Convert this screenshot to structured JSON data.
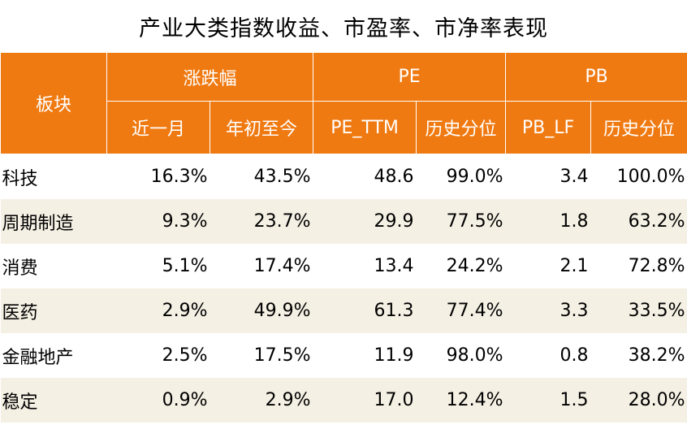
{
  "title": "产业大类指数收益、市盈率、市净率表现",
  "header": {
    "block": "板块",
    "groups": [
      "涨跌幅",
      "PE",
      "PB"
    ],
    "subs": [
      "近一月",
      "年初至今",
      "PE_TTM",
      "历史分位",
      "PB_LF",
      "历史分位"
    ]
  },
  "rows": [
    {
      "name": "科技",
      "m1": "16.3%",
      "ytd": "43.5%",
      "pe": "48.6",
      "pe_pct": "99.0%",
      "pb": "3.4",
      "pb_pct": "100.0%"
    },
    {
      "name": "周期制造",
      "m1": "9.3%",
      "ytd": "23.7%",
      "pe": "29.9",
      "pe_pct": "77.5%",
      "pb": "1.8",
      "pb_pct": "63.2%"
    },
    {
      "name": "消费",
      "m1": "5.1%",
      "ytd": "17.4%",
      "pe": "13.4",
      "pe_pct": "24.2%",
      "pb": "2.1",
      "pb_pct": "72.8%"
    },
    {
      "name": "医药",
      "m1": "2.9%",
      "ytd": "49.9%",
      "pe": "61.3",
      "pe_pct": "77.4%",
      "pb": "3.3",
      "pb_pct": "33.5%"
    },
    {
      "name": "金融地产",
      "m1": "2.5%",
      "ytd": "17.5%",
      "pe": "11.9",
      "pe_pct": "98.0%",
      "pb": "0.8",
      "pb_pct": "38.2%"
    },
    {
      "name": "稳定",
      "m1": "0.9%",
      "ytd": "2.9%",
      "pe": "17.0",
      "pe_pct": "12.4%",
      "pb": "1.5",
      "pb_pct": "28.0%"
    }
  ],
  "colors": {
    "header_bg": "#f07a12",
    "alt_row_bg": "#f5f0e4"
  }
}
